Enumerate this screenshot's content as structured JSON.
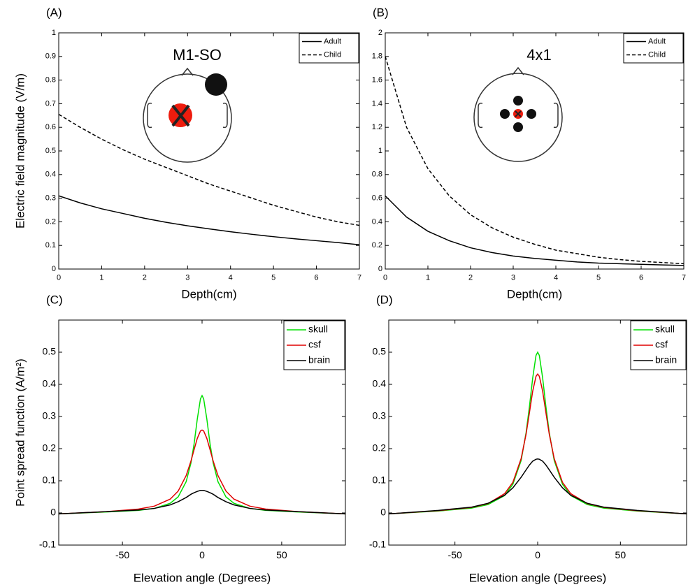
{
  "chart_data": [
    {
      "type": "line",
      "panel": "(A)",
      "inset_title": "M1-SO",
      "xlabel": "Depth(cm)",
      "ylabel": "Electric field magnitude (V/m)",
      "x": [
        0,
        0.5,
        1,
        1.5,
        2,
        2.5,
        3,
        3.5,
        4,
        4.5,
        5,
        5.5,
        6,
        6.5,
        7
      ],
      "series": [
        {
          "name": "Adult",
          "color": "#000000",
          "linestyle": "solid",
          "values": [
            0.31,
            0.28,
            0.255,
            0.235,
            0.215,
            0.198,
            0.183,
            0.17,
            0.158,
            0.147,
            0.137,
            0.128,
            0.12,
            0.112,
            0.103
          ]
        },
        {
          "name": "Child",
          "color": "#000000",
          "linestyle": "dashed",
          "values": [
            0.655,
            0.6,
            0.55,
            0.505,
            0.465,
            0.43,
            0.395,
            0.36,
            0.33,
            0.3,
            0.27,
            0.245,
            0.22,
            0.2,
            0.185
          ]
        }
      ],
      "xlim": [
        0,
        7
      ],
      "xticks": [
        0,
        1,
        2,
        3,
        4,
        5,
        6,
        7
      ],
      "ylim": [
        0,
        1
      ],
      "yticks": [
        0,
        0.1,
        0.2,
        0.3,
        0.4,
        0.5,
        0.6,
        0.7,
        0.8,
        0.9,
        1
      ],
      "legend": "upper right"
    },
    {
      "type": "line",
      "panel": "(B)",
      "inset_title": "4x1",
      "xlabel": "Depth(cm)",
      "x": [
        0,
        0.5,
        1,
        1.5,
        2,
        2.5,
        3,
        3.5,
        4,
        4.5,
        5,
        5.5,
        6,
        6.5,
        7
      ],
      "series": [
        {
          "name": "Adult",
          "color": "#000000",
          "linestyle": "solid",
          "values": [
            0.62,
            0.44,
            0.32,
            0.24,
            0.18,
            0.14,
            0.11,
            0.09,
            0.075,
            0.06,
            0.05,
            0.045,
            0.04,
            0.035,
            0.03
          ]
        },
        {
          "name": "Child",
          "color": "#000000",
          "linestyle": "dashed",
          "values": [
            1.8,
            1.2,
            0.85,
            0.62,
            0.46,
            0.35,
            0.27,
            0.21,
            0.16,
            0.13,
            0.1,
            0.08,
            0.065,
            0.055,
            0.045
          ]
        }
      ],
      "xlim": [
        0,
        7
      ],
      "xticks": [
        0,
        1,
        2,
        3,
        4,
        5,
        6,
        7
      ],
      "ylim": [
        0,
        2
      ],
      "yticks": [
        0,
        0.2,
        0.4,
        0.6,
        0.8,
        1,
        1.2,
        1.4,
        1.6,
        1.8,
        2
      ],
      "legend": "upper right"
    },
    {
      "type": "line",
      "panel": "(C)",
      "xlabel": "Elevation angle (Degrees)",
      "ylabel": "Point spread function (A/m²)",
      "x": [
        -90,
        -60,
        -40,
        -30,
        -20,
        -15,
        -10,
        -7,
        -5,
        -3,
        -1,
        0,
        1,
        3,
        5,
        7,
        10,
        15,
        20,
        30,
        40,
        60,
        90
      ],
      "series": [
        {
          "name": "skull",
          "color": "#00e000",
          "linestyle": "solid",
          "values": [
            -0.003,
            0.003,
            0.008,
            0.014,
            0.03,
            0.05,
            0.097,
            0.155,
            0.215,
            0.292,
            0.355,
            0.365,
            0.355,
            0.292,
            0.215,
            0.155,
            0.097,
            0.05,
            0.03,
            0.014,
            0.008,
            0.003,
            -0.003
          ]
        },
        {
          "name": "csf",
          "color": "#e00000",
          "linestyle": "solid",
          "values": [
            -0.003,
            0.004,
            0.012,
            0.021,
            0.043,
            0.068,
            0.116,
            0.161,
            0.197,
            0.232,
            0.255,
            0.258,
            0.255,
            0.232,
            0.197,
            0.161,
            0.116,
            0.068,
            0.043,
            0.021,
            0.012,
            0.004,
            -0.003
          ]
        },
        {
          "name": "brain",
          "color": "#000000",
          "linestyle": "solid",
          "values": [
            -0.003,
            0.004,
            0.009,
            0.014,
            0.025,
            0.035,
            0.048,
            0.058,
            0.063,
            0.067,
            0.07,
            0.07,
            0.07,
            0.067,
            0.063,
            0.058,
            0.048,
            0.035,
            0.025,
            0.014,
            0.009,
            0.004,
            -0.003
          ]
        }
      ],
      "xlim": [
        -90,
        90
      ],
      "xticks": [
        -50,
        0,
        50
      ],
      "ylim": [
        -0.1,
        0.6
      ],
      "yticks": [
        -0.1,
        0,
        0.1,
        0.2,
        0.3,
        0.4,
        0.5
      ],
      "legend": "upper right"
    },
    {
      "type": "line",
      "panel": "(D)",
      "xlabel": "Elevation angle (Degrees)",
      "x": [
        -90,
        -60,
        -40,
        -30,
        -20,
        -15,
        -10,
        -7,
        -5,
        -3,
        -1,
        0,
        1,
        3,
        5,
        7,
        10,
        15,
        20,
        30,
        40,
        60,
        90
      ],
      "series": [
        {
          "name": "skull",
          "color": "#00e000",
          "linestyle": "solid",
          "values": [
            -0.003,
            0.006,
            0.015,
            0.026,
            0.054,
            0.089,
            0.163,
            0.25,
            0.33,
            0.42,
            0.49,
            0.5,
            0.49,
            0.42,
            0.33,
            0.25,
            0.163,
            0.089,
            0.054,
            0.026,
            0.015,
            0.006,
            -0.003
          ]
        },
        {
          "name": "csf",
          "color": "#e00000",
          "linestyle": "solid",
          "values": [
            -0.003,
            0.007,
            0.017,
            0.029,
            0.06,
            0.095,
            0.169,
            0.245,
            0.311,
            0.379,
            0.425,
            0.432,
            0.425,
            0.379,
            0.311,
            0.245,
            0.169,
            0.095,
            0.06,
            0.029,
            0.017,
            0.007,
            -0.003
          ]
        },
        {
          "name": "brain",
          "color": "#000000",
          "linestyle": "solid",
          "values": [
            -0.003,
            0.008,
            0.018,
            0.03,
            0.055,
            0.078,
            0.111,
            0.134,
            0.149,
            0.161,
            0.167,
            0.168,
            0.167,
            0.161,
            0.149,
            0.134,
            0.111,
            0.078,
            0.055,
            0.03,
            0.018,
            0.008,
            -0.003
          ]
        }
      ],
      "xlim": [
        -90,
        90
      ],
      "xticks": [
        -50,
        0,
        50
      ],
      "ylim": [
        -0.1,
        0.6
      ],
      "yticks": [
        -0.1,
        0,
        0.1,
        0.2,
        0.3,
        0.4,
        0.5
      ],
      "legend": "upper right"
    }
  ]
}
